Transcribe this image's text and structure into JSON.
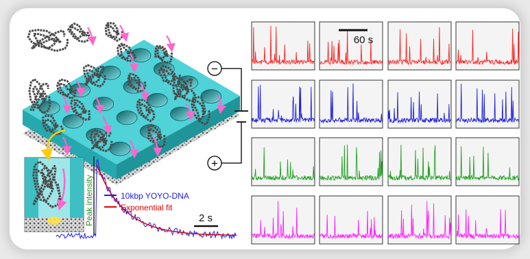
{
  "figure": {
    "scale_bar_grid": "60 s",
    "scale_bar_trace": "2 s",
    "electrode_negative": "−",
    "electrode_positive": "+",
    "trace_axis_label": "Peak intensity"
  },
  "legend": {
    "entries": [
      {
        "label": "10kbp YOYO-DNA",
        "color": "#1a1aff"
      },
      {
        "label": "Exponential fit",
        "color": "#e00000"
      }
    ]
  },
  "colors": {
    "row_1": "#ff2020",
    "row_2": "#1f1fe0",
    "row_3": "#1fa01f",
    "row_4": "#ff20ff",
    "membrane": "#33c6cc",
    "dna": "#444444",
    "arrow_pink": "#ff66cc"
  },
  "chart_data": {
    "type": "line",
    "title": "",
    "xlabel": "",
    "ylabel": "Peak intensity",
    "series": [
      {
        "name": "10kbp YOYO-DNA"
      },
      {
        "name": "Exponential fit"
      }
    ]
  }
}
